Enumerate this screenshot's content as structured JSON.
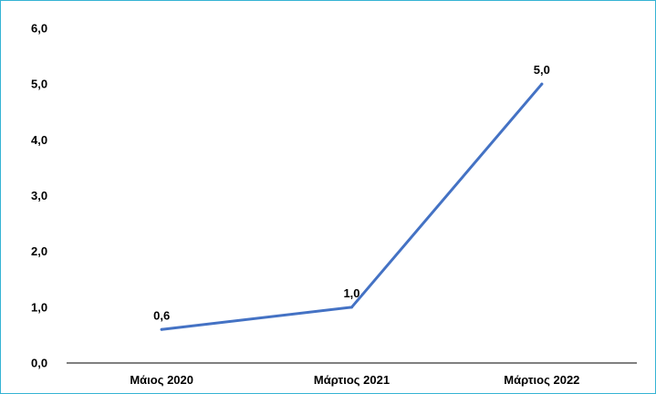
{
  "chart_data": {
    "type": "line",
    "title": "",
    "xlabel": "",
    "ylabel": "",
    "categories": [
      "Μάιος 2020",
      "Μάρτιος 2021",
      "Μάρτιος 2022"
    ],
    "series": [
      {
        "values": [
          0.6,
          1.0,
          5.0
        ],
        "data_labels": [
          "0,6",
          "1,0",
          "5,0"
        ],
        "color": "#4472c4"
      }
    ],
    "ylim": [
      0,
      6
    ],
    "yticks": [
      0,
      1,
      2,
      3,
      4,
      5,
      6
    ],
    "ytick_labels": [
      "0,0",
      "1,0",
      "2,0",
      "3,0",
      "4,0",
      "5,0",
      "6,0"
    ],
    "grid": false,
    "legend": "none",
    "frame_color": "#35b3d4",
    "axis_color": "#000000"
  }
}
